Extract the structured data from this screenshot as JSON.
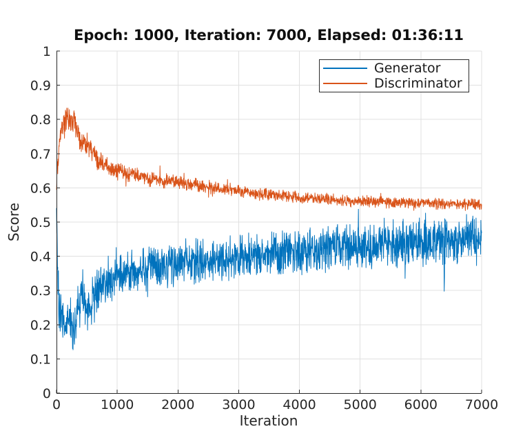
{
  "figure": {
    "background": "#ffffff"
  },
  "chart_data": {
    "type": "line",
    "title": "Epoch: 1000, Iteration: 7000, Elapsed: 01:36:11",
    "xlabel": "Iteration",
    "ylabel": "Score",
    "xlim": [
      0,
      7000
    ],
    "ylim": [
      0,
      1
    ],
    "x_ticks": [
      0,
      1000,
      2000,
      3000,
      4000,
      5000,
      6000,
      7000
    ],
    "x_tick_labels": [
      "0",
      "1000",
      "2000",
      "3000",
      "4000",
      "5000",
      "6000",
      "7000"
    ],
    "y_ticks": [
      0,
      0.1,
      0.2,
      0.3,
      0.4,
      0.5,
      0.6,
      0.7,
      0.8,
      0.9,
      1
    ],
    "y_tick_labels": [
      "0",
      "0.1",
      "0.2",
      "0.3",
      "0.4",
      "0.5",
      "0.6",
      "0.7",
      "0.8",
      "0.9",
      "1"
    ],
    "grid": true,
    "legend": {
      "position": "top-right",
      "entries": [
        "Generator",
        "Discriminator"
      ]
    },
    "colors": {
      "generator": "#0072BD",
      "discriminator": "#D95319",
      "grid": "#e0e0e0",
      "axis": "#262626",
      "tick_text": "#262626",
      "title_text": "#0f0f0f",
      "legend_border": "#2b2b2b",
      "background": "#ffffff"
    },
    "sample_step": 4,
    "series": [
      {
        "name": "Generator",
        "color": "#0072BD",
        "seed": 20,
        "spike_prob": 0.03,
        "spike_gain": 1.9,
        "trend": [
          [
            0,
            0.53
          ],
          [
            15,
            0.38
          ],
          [
            40,
            0.25
          ],
          [
            80,
            0.21
          ],
          [
            130,
            0.19
          ],
          [
            180,
            0.22
          ],
          [
            230,
            0.19
          ],
          [
            280,
            0.17
          ],
          [
            330,
            0.23
          ],
          [
            380,
            0.27
          ],
          [
            430,
            0.3
          ],
          [
            500,
            0.26
          ],
          [
            560,
            0.25
          ],
          [
            620,
            0.28
          ],
          [
            700,
            0.31
          ],
          [
            800,
            0.325
          ],
          [
            900,
            0.33
          ],
          [
            1000,
            0.35
          ],
          [
            1200,
            0.355
          ],
          [
            1400,
            0.365
          ],
          [
            1600,
            0.37
          ],
          [
            1800,
            0.375
          ],
          [
            2000,
            0.38
          ],
          [
            2250,
            0.385
          ],
          [
            2500,
            0.39
          ],
          [
            2750,
            0.392
          ],
          [
            3000,
            0.398
          ],
          [
            3250,
            0.4
          ],
          [
            3500,
            0.405
          ],
          [
            3750,
            0.41
          ],
          [
            4000,
            0.418
          ],
          [
            4250,
            0.42
          ],
          [
            4500,
            0.424
          ],
          [
            4750,
            0.428
          ],
          [
            5000,
            0.43
          ],
          [
            5250,
            0.432
          ],
          [
            5500,
            0.436
          ],
          [
            5750,
            0.438
          ],
          [
            6000,
            0.44
          ],
          [
            6250,
            0.442
          ],
          [
            6500,
            0.444
          ],
          [
            6750,
            0.447
          ],
          [
            7000,
            0.45
          ]
        ],
        "noise_amp": [
          [
            0,
            0.05
          ],
          [
            100,
            0.05
          ],
          [
            300,
            0.055
          ],
          [
            600,
            0.05
          ],
          [
            1000,
            0.045
          ],
          [
            2000,
            0.045
          ],
          [
            3000,
            0.045
          ],
          [
            4500,
            0.05
          ],
          [
            7000,
            0.05
          ]
        ]
      },
      {
        "name": "Discriminator",
        "color": "#D95319",
        "seed": 77,
        "spike_prob": 0.02,
        "spike_gain": 1.8,
        "trend": [
          [
            0,
            0.62
          ],
          [
            20,
            0.68
          ],
          [
            50,
            0.74
          ],
          [
            90,
            0.78
          ],
          [
            130,
            0.79
          ],
          [
            170,
            0.81
          ],
          [
            210,
            0.79
          ],
          [
            250,
            0.8
          ],
          [
            290,
            0.795
          ],
          [
            330,
            0.77
          ],
          [
            370,
            0.75
          ],
          [
            420,
            0.72
          ],
          [
            470,
            0.73
          ],
          [
            520,
            0.725
          ],
          [
            570,
            0.715
          ],
          [
            620,
            0.7
          ],
          [
            670,
            0.68
          ],
          [
            720,
            0.675
          ],
          [
            800,
            0.665
          ],
          [
            900,
            0.655
          ],
          [
            1000,
            0.65
          ],
          [
            1100,
            0.645
          ],
          [
            1200,
            0.64
          ],
          [
            1400,
            0.632
          ],
          [
            1600,
            0.625
          ],
          [
            1800,
            0.62
          ],
          [
            2000,
            0.614
          ],
          [
            2200,
            0.61
          ],
          [
            2400,
            0.605
          ],
          [
            2600,
            0.6
          ],
          [
            2800,
            0.596
          ],
          [
            3000,
            0.591
          ],
          [
            3200,
            0.586
          ],
          [
            3400,
            0.582
          ],
          [
            3600,
            0.578
          ],
          [
            3800,
            0.575
          ],
          [
            4000,
            0.572
          ],
          [
            4250,
            0.569
          ],
          [
            4500,
            0.566
          ],
          [
            4750,
            0.563
          ],
          [
            5000,
            0.561
          ],
          [
            5250,
            0.559
          ],
          [
            5500,
            0.557
          ],
          [
            5750,
            0.556
          ],
          [
            6000,
            0.555
          ],
          [
            6250,
            0.554
          ],
          [
            6500,
            0.553
          ],
          [
            6750,
            0.552
          ],
          [
            7000,
            0.551
          ]
        ],
        "noise_amp": [
          [
            0,
            0.03
          ],
          [
            200,
            0.028
          ],
          [
            400,
            0.025
          ],
          [
            600,
            0.022
          ],
          [
            900,
            0.018
          ],
          [
            1500,
            0.016
          ],
          [
            2500,
            0.014
          ],
          [
            4000,
            0.012
          ],
          [
            7000,
            0.011
          ]
        ]
      }
    ]
  }
}
